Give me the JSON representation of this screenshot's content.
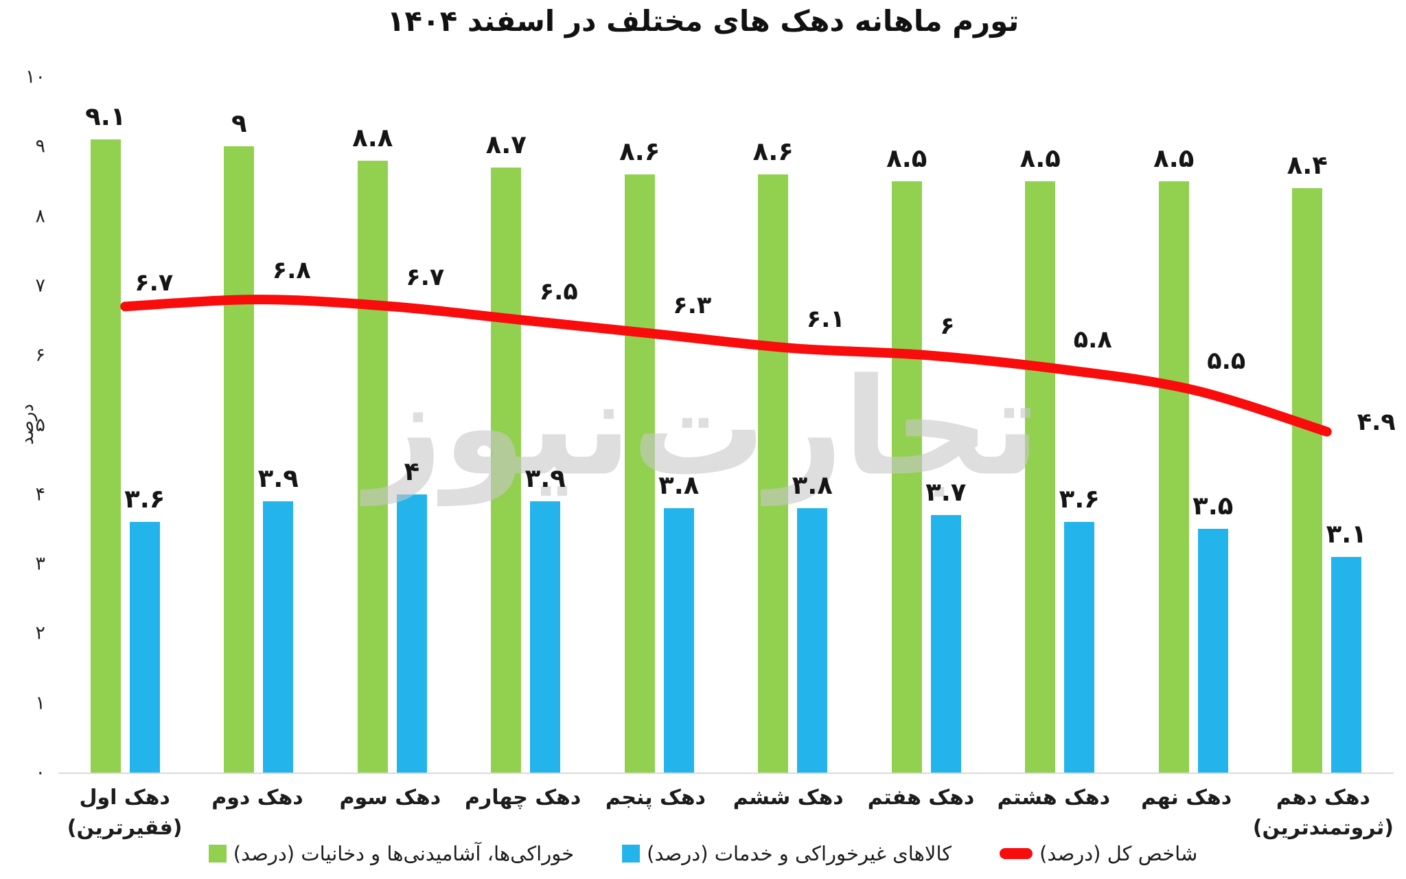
{
  "watermark": {
    "text": "تجارت‌نیوز"
  },
  "chart_data": {
    "type": "bar+line",
    "title": "تورم ماهانه دهک های مختلف در اسفند ۱۴۰۴",
    "ylabel": "درصد",
    "ylim": [
      0,
      10
    ],
    "grid": false,
    "legend_position": "bottom",
    "y_ticks": [
      0,
      1,
      2,
      3,
      4,
      5,
      6,
      7,
      8,
      9,
      10
    ],
    "y_ticks_fa": [
      "۰",
      "۱",
      "۲",
      "۳",
      "۴",
      "۵",
      "۶",
      "۷",
      "۸",
      "۹",
      "۱۰"
    ],
    "categories": [
      {
        "label": "دهک اول",
        "sub": "(فقیرترین)"
      },
      {
        "label": "دهک دوم",
        "sub": ""
      },
      {
        "label": "دهک سوم",
        "sub": ""
      },
      {
        "label": "دهک چهارم",
        "sub": ""
      },
      {
        "label": "دهک پنجم",
        "sub": ""
      },
      {
        "label": "دهک ششم",
        "sub": ""
      },
      {
        "label": "دهک هفتم",
        "sub": ""
      },
      {
        "label": "دهک هشتم",
        "sub": ""
      },
      {
        "label": "دهک نهم",
        "sub": ""
      },
      {
        "label": "دهک دهم",
        "sub": "(ثروتمندترین)"
      }
    ],
    "series": [
      {
        "name": "خوراکی‌ها، آشامیدنی‌ها و دخانیات (درصد)",
        "type": "bar",
        "color": "#92d050",
        "values": [
          9.1,
          9,
          8.8,
          8.7,
          8.6,
          8.6,
          8.5,
          8.5,
          8.5,
          8.4
        ],
        "labels_fa": [
          "۹.۱",
          "۹",
          "۸.۸",
          "۸.۷",
          "۸.۶",
          "۸.۶",
          "۸.۵",
          "۸.۵",
          "۸.۵",
          "۸.۴"
        ]
      },
      {
        "name": "کالاهای غیرخوراکی و خدمات (درصد)",
        "type": "bar",
        "color": "#23b4ec",
        "values": [
          3.6,
          3.9,
          4,
          3.9,
          3.8,
          3.8,
          3.7,
          3.6,
          3.5,
          3.1
        ],
        "labels_fa": [
          "۳.۶",
          "۳.۹",
          "۴",
          "۳.۹",
          "۳.۸",
          "۳.۸",
          "۳.۷",
          "۳.۶",
          "۳.۵",
          "۳.۱"
        ]
      },
      {
        "name": "شاخص کل (درصد)",
        "type": "line",
        "color": "#f80c0c",
        "values": [
          6.7,
          6.8,
          6.7,
          6.5,
          6.3,
          6.1,
          6,
          5.8,
          5.5,
          4.9
        ],
        "labels_fa": [
          "۶.۷",
          "۶.۸",
          "۶.۷",
          "۶.۵",
          "۶.۳",
          "۶.۱",
          "۶",
          "۵.۸",
          "۵.۵",
          "۴.۹"
        ]
      }
    ]
  }
}
